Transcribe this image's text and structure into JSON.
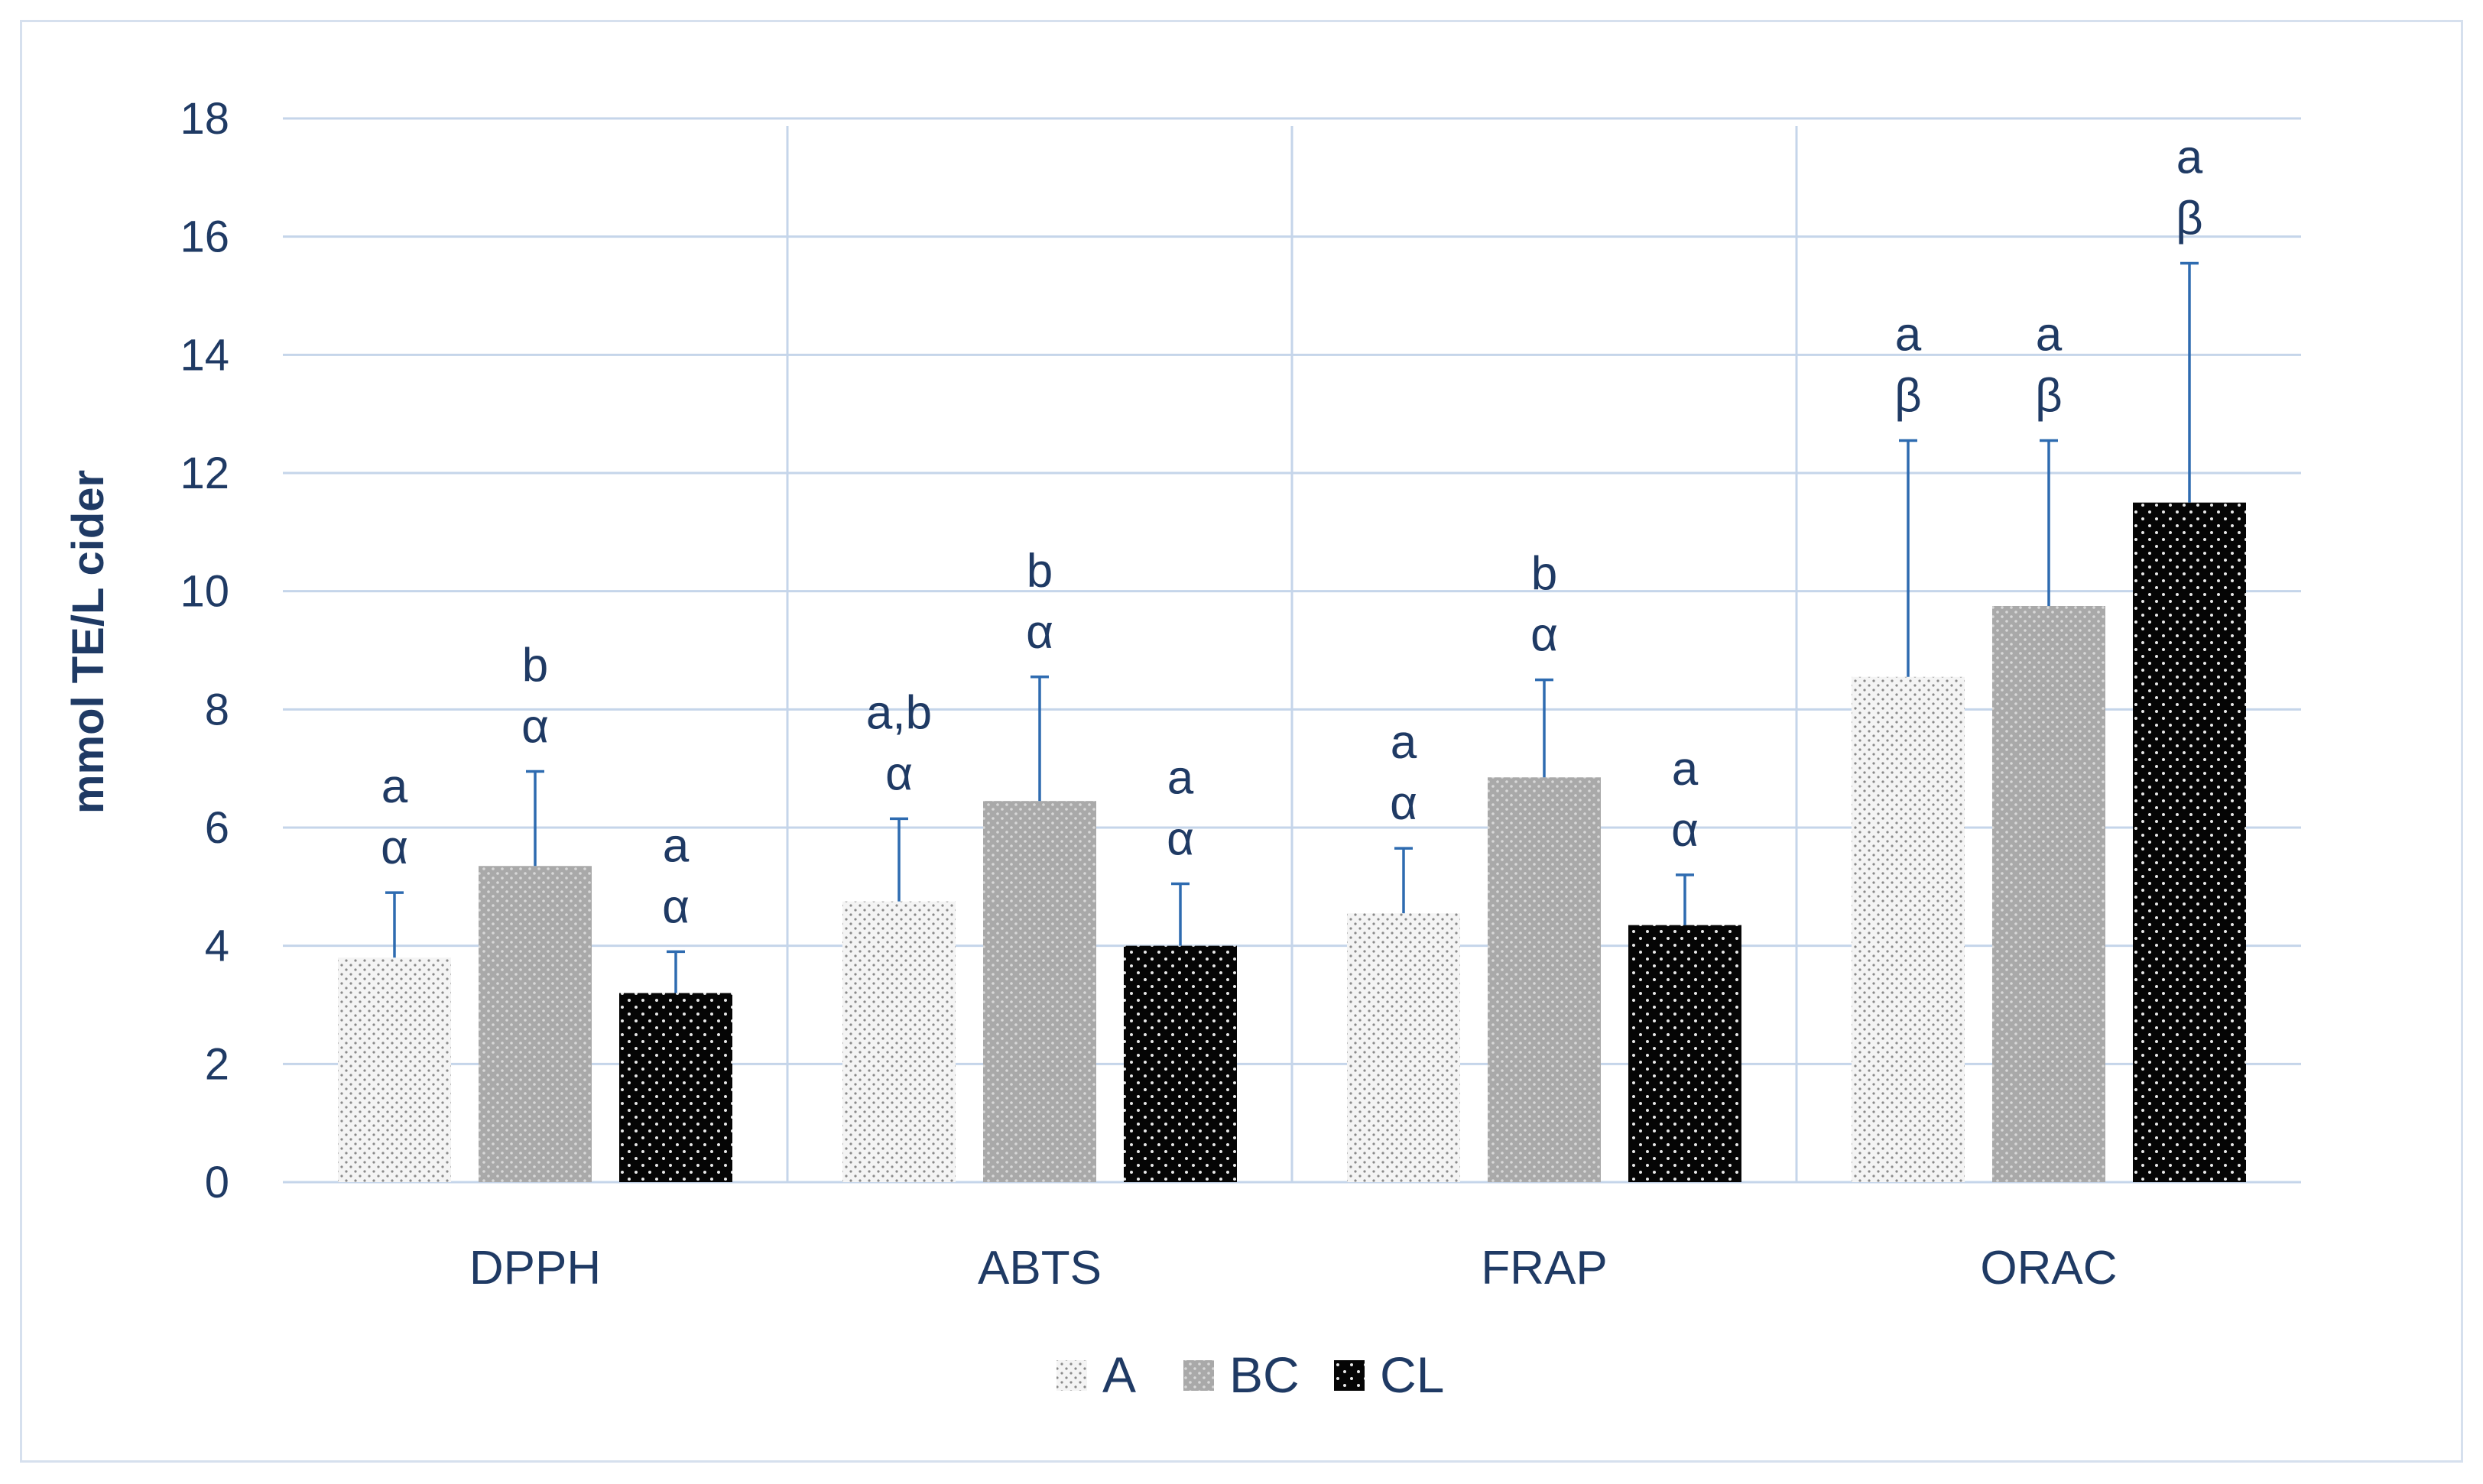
{
  "chart_data": {
    "type": "bar",
    "title": "",
    "xlabel": "",
    "ylabel": "mmol TE/L cider",
    "ylim": [
      0,
      18
    ],
    "yticks": [
      0,
      2,
      4,
      6,
      8,
      10,
      12,
      14,
      16,
      18
    ],
    "categories": [
      "DPPH",
      "ABTS",
      "FRAP",
      "ORAC"
    ],
    "series": [
      {
        "name": "A",
        "values": [
          3.8,
          4.75,
          4.55,
          8.55
        ],
        "errors": [
          1.1,
          1.4,
          1.1,
          4.0
        ],
        "annotations": [
          [
            "a",
            "α"
          ],
          [
            "a,b",
            "α"
          ],
          [
            "a",
            "α"
          ],
          [
            "a",
            "β"
          ]
        ]
      },
      {
        "name": "BC",
        "values": [
          5.35,
          6.45,
          6.85,
          9.75
        ],
        "errors": [
          1.6,
          2.1,
          1.65,
          2.8
        ],
        "annotations": [
          [
            "b",
            "α"
          ],
          [
            "b",
            "α"
          ],
          [
            "b",
            "α"
          ],
          [
            "a",
            "β"
          ]
        ]
      },
      {
        "name": "CL",
        "values": [
          3.2,
          4.0,
          4.35,
          11.5
        ],
        "errors": [
          0.7,
          1.05,
          0.85,
          4.05
        ],
        "annotations": [
          [
            "a",
            "α"
          ],
          [
            "a",
            "α"
          ],
          [
            "a",
            "α"
          ],
          [
            "a",
            "β"
          ]
        ]
      }
    ],
    "grid": true,
    "legend_position": "bottom",
    "colors": {
      "A": "#f2f2f2",
      "BC": "#b4b4b4",
      "CL": "#0a0a0a",
      "error_bar": "#2e6bb0",
      "grid": "#c5d5ea",
      "text": "#1f3a64"
    }
  }
}
